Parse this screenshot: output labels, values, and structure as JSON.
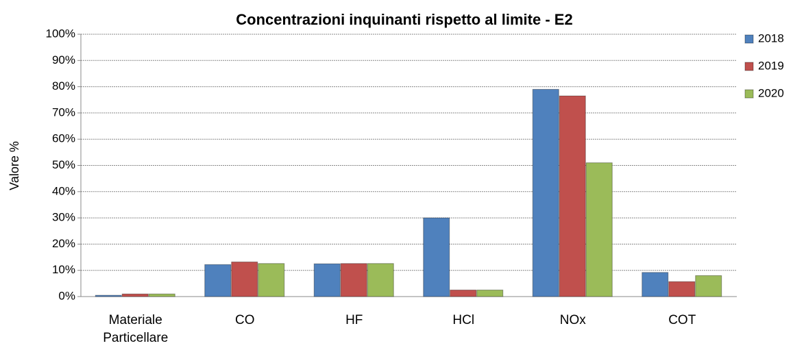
{
  "chart_data": {
    "type": "bar",
    "title": "Concentrazioni inquinanti rispetto al limite - E2",
    "y_label": "Valore %",
    "categories": [
      "Materiale Particellare",
      "CO",
      "HF",
      "HCl",
      "NOx",
      "COT"
    ],
    "series": [
      {
        "name": "2018",
        "color": "#4f81bd",
        "values": [
          0.5,
          12.2,
          12.5,
          30,
          79,
          9.2
        ]
      },
      {
        "name": "2019",
        "color": "#c0504d",
        "values": [
          1,
          13.2,
          12.6,
          2.5,
          76.5,
          5.7
        ]
      },
      {
        "name": "2020",
        "color": "#9bbb59",
        "values": [
          1,
          12.6,
          12.6,
          2.5,
          51,
          8
        ]
      }
    ],
    "ylim": [
      0,
      100
    ],
    "yticks": [
      {
        "value": 0,
        "label": "0%"
      },
      {
        "value": 10,
        "label": "10%"
      },
      {
        "value": 20,
        "label": "20%"
      },
      {
        "value": 30,
        "label": "30%"
      },
      {
        "value": 40,
        "label": "40%"
      },
      {
        "value": 50,
        "label": "50%"
      },
      {
        "value": 60,
        "label": "60%"
      },
      {
        "value": 70,
        "label": "70%"
      },
      {
        "value": 80,
        "label": "80%"
      },
      {
        "value": 90,
        "label": "90%"
      },
      {
        "value": 100,
        "label": "100%"
      }
    ],
    "grid": true,
    "legend": "right"
  }
}
